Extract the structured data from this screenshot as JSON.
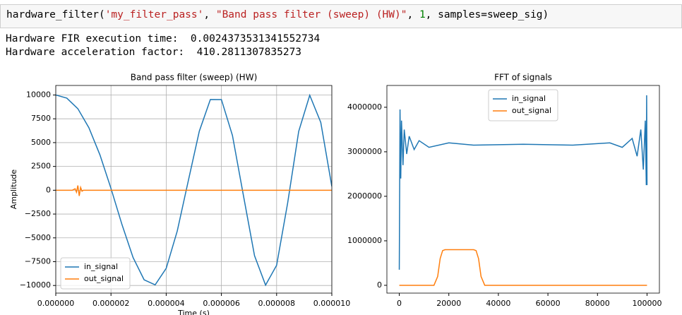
{
  "code": {
    "tokens": [
      {
        "text": "hardware_filter(",
        "color": "#000000"
      },
      {
        "text": "'my_filter_pass'",
        "color": "#ba2121"
      },
      {
        "text": ", ",
        "color": "#000000"
      },
      {
        "text": "\"Band pass filter (sweep) (HW)\"",
        "color": "#ba2121"
      },
      {
        "text": ", ",
        "color": "#000000"
      },
      {
        "text": "1",
        "color": "#008000"
      },
      {
        "text": ", samples=sweep_sig)",
        "color": "#000000"
      }
    ]
  },
  "output": {
    "lines": [
      "Hardware FIR execution time:  0.0024373531341552734",
      "Hardware acceleration factor:  410.2811307835273"
    ]
  },
  "chart_data": [
    {
      "type": "line",
      "title": "Band pass filter (sweep) (HW)",
      "x_label": "Time (s)",
      "y_label": "Amplitude",
      "xlim": [
        0,
        1e-05
      ],
      "ylim": [
        -10800,
        11000
      ],
      "grid": true,
      "legend": "lower left",
      "xticks": [
        {
          "value": 0,
          "label": "0.000000"
        },
        {
          "value": 2e-06,
          "label": "0.000002"
        },
        {
          "value": 4e-06,
          "label": "0.000004"
        },
        {
          "value": 6e-06,
          "label": "0.000006"
        },
        {
          "value": 8e-06,
          "label": "0.000008"
        },
        {
          "value": 1e-05,
          "label": "0.000010"
        }
      ],
      "yticks": [
        {
          "value": -10000,
          "label": "−10000"
        },
        {
          "value": -7500,
          "label": "−7500"
        },
        {
          "value": -5000,
          "label": "−5000"
        },
        {
          "value": -2500,
          "label": "−2500"
        },
        0,
        2500,
        5000,
        7500,
        10000
      ],
      "x": [
        0,
        4e-07,
        8e-07,
        1.2e-06,
        1.6e-06,
        2e-06,
        2.4e-06,
        2.8e-06,
        3.2e-06,
        3.6e-06,
        4e-06,
        4.4e-06,
        4.8e-06,
        5.2e-06,
        5.6e-06,
        6e-06,
        6.4e-06,
        6.8e-06,
        7.2e-06,
        7.6e-06,
        8e-06,
        8.4e-06,
        8.8e-06,
        9.2e-06,
        9.6e-06,
        1e-05
      ],
      "series": [
        {
          "name": "in_signal",
          "color": "#1f77b4",
          "values": [
            10000,
            9670,
            8560,
            6560,
            3710,
            190,
            -3620,
            -7060,
            -9400,
            -9930,
            -8200,
            -4290,
            980,
            6200,
            9530,
            9520,
            5750,
            -590,
            -6870,
            -9960,
            -7880,
            -1340,
            6180,
            9970,
            7120,
            400
          ]
        },
        {
          "name": "out_signal",
          "color": "#ff7f0e",
          "x": [
            0,
            6e-07,
            7e-07,
            7.5e-07,
            8e-07,
            8.5e-07,
            9e-07,
            9.5e-07,
            1e-06,
            1e-05
          ],
          "values": [
            0,
            0,
            150,
            -200,
            500,
            -600,
            300,
            -100,
            0,
            0
          ]
        }
      ]
    },
    {
      "type": "line",
      "title": "FFT of signals",
      "xlim": [
        -5000,
        105000
      ],
      "ylim": [
        -175000,
        4490000
      ],
      "grid": false,
      "legend": "upper center",
      "xticks": [
        0,
        20000,
        40000,
        60000,
        80000,
        100000
      ],
      "yticks": [
        0,
        1000000,
        2000000,
        3000000,
        4000000
      ],
      "x": [
        0,
        300,
        600,
        900,
        1500,
        2000,
        3000,
        4000,
        6000,
        8000,
        12000,
        20000,
        30000,
        50000,
        70000,
        85000,
        90000,
        94000,
        96000,
        97500,
        98500,
        99300,
        99700,
        99850,
        100000
      ],
      "series": [
        {
          "name": "in_signal",
          "color": "#1f77b4",
          "values": [
            350000,
            3950000,
            2400000,
            3700000,
            2700000,
            3500000,
            2950000,
            3350000,
            3050000,
            3250000,
            3100000,
            3200000,
            3150000,
            3170000,
            3150000,
            3200000,
            3100000,
            3300000,
            2900000,
            3500000,
            2600000,
            3700000,
            2250000,
            4270000,
            2250000
          ]
        },
        {
          "name": "out_signal",
          "color": "#ff7f0e",
          "x": [
            0,
            14000,
            15500,
            16500,
            17500,
            18500,
            30000,
            31000,
            32000,
            33000,
            34500,
            100000
          ],
          "values": [
            0,
            0,
            200000,
            600000,
            780000,
            800000,
            800000,
            780000,
            600000,
            200000,
            0,
            0
          ]
        }
      ]
    }
  ]
}
